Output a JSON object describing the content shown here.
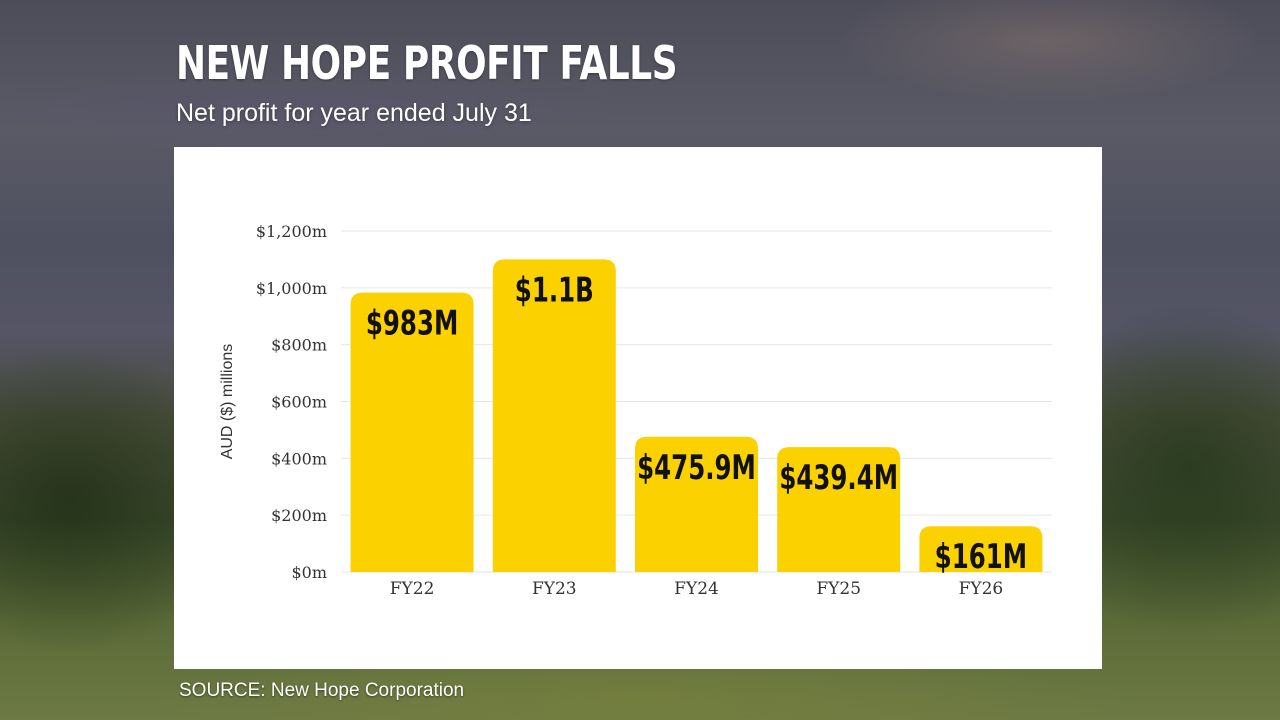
{
  "page": {
    "title": "NEW HOPE PROFIT FALLS",
    "subtitle": "Net profit for year ended July 31",
    "source": "SOURCE: New Hope Corporation"
  },
  "colors": {
    "bar": "#fcd100",
    "bar_label": "#111111",
    "axis_text": "#333333",
    "grid": "#e6e6e6",
    "panel": "#ffffff"
  },
  "chart_data": {
    "type": "bar",
    "categories": [
      "FY22",
      "FY23",
      "FY24",
      "FY25",
      "FY26"
    ],
    "values": [
      983,
      1100,
      475.9,
      439.4,
      161
    ],
    "data_labels": [
      "$983M",
      "$1.1B",
      "$475.9M",
      "$439.4M",
      "$161M"
    ],
    "ylabel": "AUD ($) millions",
    "ylim": [
      0,
      1200
    ],
    "yticks": [
      0,
      200,
      400,
      600,
      800,
      1000,
      1200
    ],
    "ytick_labels": [
      "$0m",
      "$200m",
      "$400m",
      "$600m",
      "$800m",
      "$1,000m",
      "$1,200m"
    ],
    "grid": true,
    "legend": "none"
  }
}
